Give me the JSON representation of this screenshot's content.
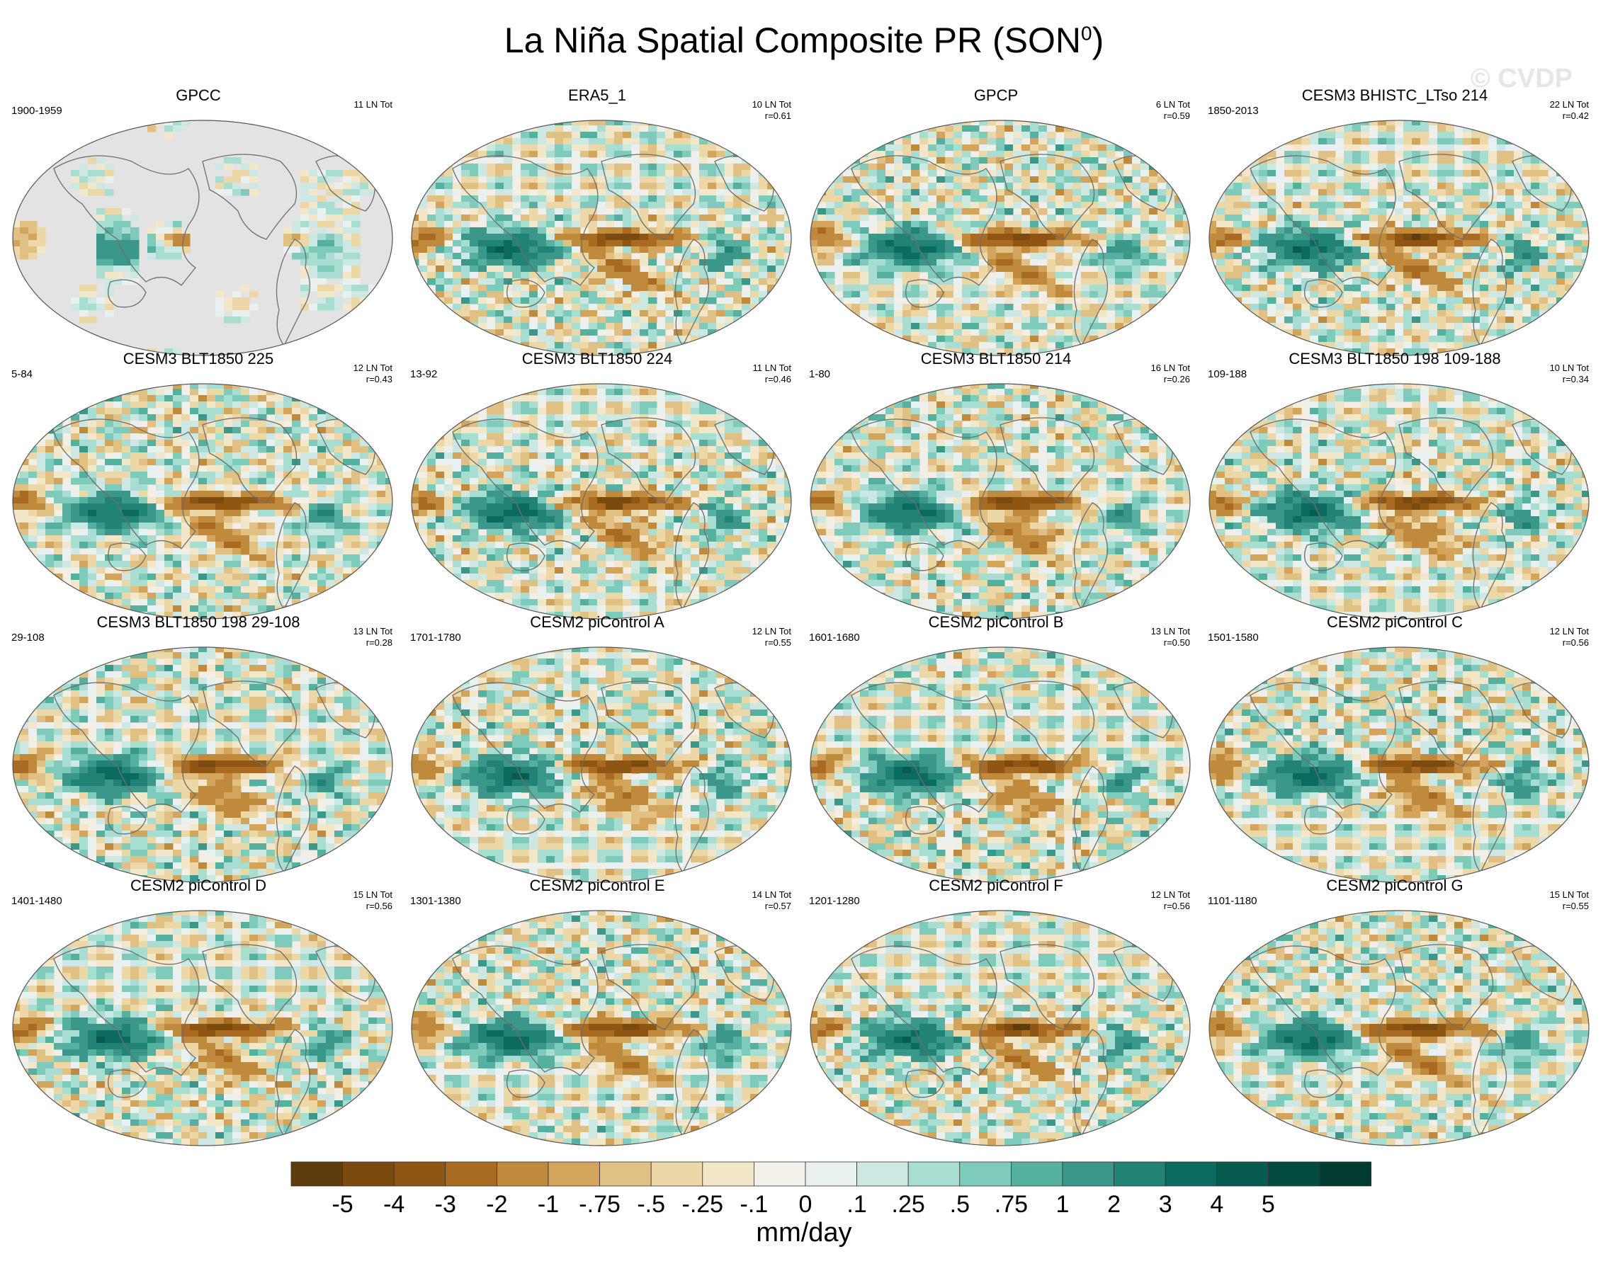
{
  "title": "La Niña Spatial Composite PR (SON",
  "title_sup": "0",
  "title_end": ")",
  "watermark": "© CVDP",
  "colors": {
    "land_gray": "#e3e3e3",
    "coast": "#6e6e6e",
    "ocean_base": "#f3efe6"
  },
  "panels": [
    {
      "name": "GPCC",
      "period": "1900-1959",
      "ln": "11 LN Tot",
      "r": "",
      "style": "obs_land"
    },
    {
      "name": "ERA5_1",
      "period": "",
      "ln": "10 LN Tot",
      "r": "r=0.61",
      "style": "full"
    },
    {
      "name": "GPCP",
      "period": "",
      "ln": "6 LN Tot",
      "r": "r=0.59",
      "style": "full"
    },
    {
      "name": "CESM3 BHISTC_LTso 214",
      "period": "1850-2013",
      "ln": "22 LN Tot",
      "r": "r=0.42",
      "style": "full"
    },
    {
      "name": "CESM3 BLT1850 225",
      "period": "5-84",
      "ln": "12 LN Tot",
      "r": "r=0.43",
      "style": "full"
    },
    {
      "name": "CESM3 BLT1850 224",
      "period": "13-92",
      "ln": "11 LN Tot",
      "r": "r=0.46",
      "style": "full"
    },
    {
      "name": "CESM3 BLT1850 214",
      "period": "1-80",
      "ln": "16 LN Tot",
      "r": "r=0.26",
      "style": "full"
    },
    {
      "name": "CESM3 BLT1850 198 109-188",
      "period": "109-188",
      "ln": "10 LN Tot",
      "r": "r=0.34",
      "style": "full"
    },
    {
      "name": "CESM3 BLT1850 198 29-108",
      "period": "29-108",
      "ln": "13 LN Tot",
      "r": "r=0.28",
      "style": "full"
    },
    {
      "name": "CESM2 piControl A",
      "period": "1701-1780",
      "ln": "12 LN Tot",
      "r": "r=0.55",
      "style": "full"
    },
    {
      "name": "CESM2 piControl B",
      "period": "1601-1680",
      "ln": "13 LN Tot",
      "r": "r=0.50",
      "style": "full"
    },
    {
      "name": "CESM2 piControl C",
      "period": "1501-1580",
      "ln": "12 LN Tot",
      "r": "r=0.56",
      "style": "full"
    },
    {
      "name": "CESM2 piControl D",
      "period": "1401-1480",
      "ln": "15 LN Tot",
      "r": "r=0.56",
      "style": "full"
    },
    {
      "name": "CESM2 piControl E",
      "period": "1301-1380",
      "ln": "14 LN Tot",
      "r": "r=0.57",
      "style": "full"
    },
    {
      "name": "CESM2 piControl F",
      "period": "1201-1280",
      "ln": "12 LN Tot",
      "r": "r=0.56",
      "style": "full"
    },
    {
      "name": "CESM2 piControl G",
      "period": "1101-1180",
      "ln": "15 LN Tot",
      "r": "r=0.55",
      "style": "full"
    }
  ],
  "colorbar": {
    "colors": [
      "#5e3c0d",
      "#7a4a0f",
      "#8f5512",
      "#a96b22",
      "#c08a3c",
      "#d3a45c",
      "#e1c183",
      "#ecd8a6",
      "#f3e7c9",
      "#f4f1eb",
      "#e9f1f0",
      "#cde8e2",
      "#a8ddd2",
      "#7fcbbb",
      "#56b0a0",
      "#3a978a",
      "#218276",
      "#0b6b60",
      "#075b50",
      "#034a3f",
      "#013b30"
    ],
    "labels": [
      "-5",
      "-4",
      "-3",
      "-2",
      "-1",
      "-.75",
      "-.5",
      "-.25",
      "-.1",
      "0",
      ".1",
      ".25",
      ".5",
      ".75",
      "1",
      "2",
      "3",
      "4",
      "5"
    ],
    "units": "mm/day"
  }
}
